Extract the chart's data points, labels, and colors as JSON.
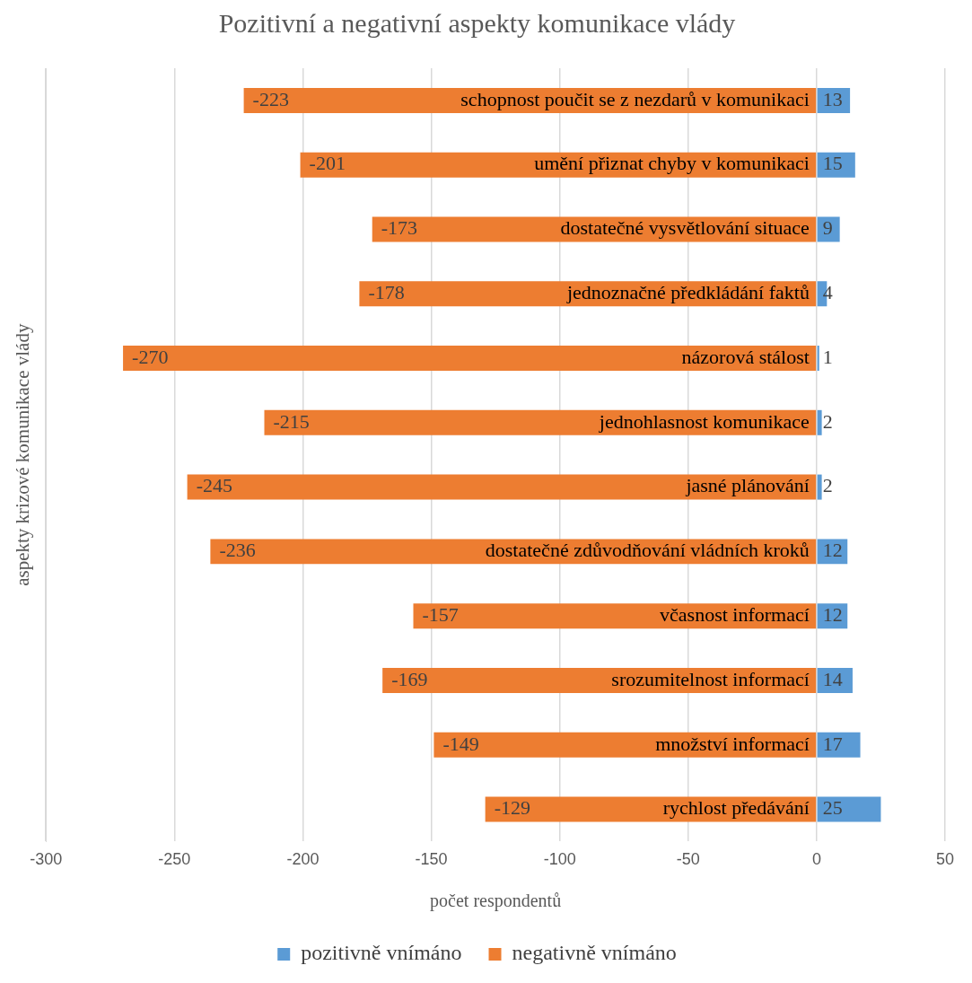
{
  "chart_data": {
    "type": "bar",
    "orientation": "horizontal",
    "stacked": true,
    "title": "Pozitivní a negativní aspekty komunikace vlády",
    "xlabel": "počet respondentů",
    "ylabel": "aspekty krizové komunikace vlády",
    "categories": [
      "schopnost poučit se z nezdarů v komunikaci",
      "umění přiznat chyby v komunikaci",
      "dostatečné vysvětlování situace",
      "jednoznačné předkládání faktů",
      "názorová stálost",
      "jednohlasnost komunikace",
      "jasné plánování",
      "dostatečné zdůvodňování vládních kroků",
      "včasnost informací",
      "srozumitelnost informací",
      "množství informací",
      "rychlost předávání"
    ],
    "series": [
      {
        "name": "pozitivně vnímáno",
        "color": "#5b9bd5",
        "values": [
          13,
          15,
          9,
          4,
          1,
          2,
          2,
          12,
          12,
          14,
          17,
          25
        ]
      },
      {
        "name": "negativně vnímáno",
        "color": "#ed7d31",
        "values": [
          -223,
          -201,
          -173,
          -178,
          -270,
          -215,
          -245,
          -236,
          -157,
          -169,
          -149,
          -129
        ]
      }
    ],
    "xlim": [
      -300,
      50
    ],
    "xticks": [
      -300,
      -250,
      -200,
      -150,
      -100,
      -50,
      0,
      50
    ],
    "grid": "x",
    "legend": "bottom",
    "data_labels": true
  }
}
